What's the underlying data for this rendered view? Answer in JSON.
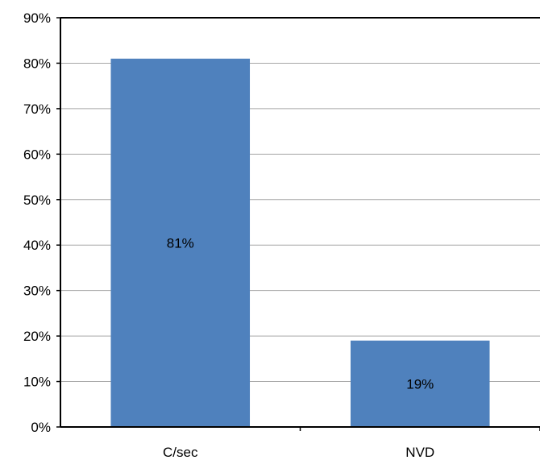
{
  "chart_data": {
    "type": "bar",
    "categories": [
      "C/sec",
      "NVD"
    ],
    "values": [
      81,
      19
    ],
    "data_labels": [
      "81%",
      "19%"
    ],
    "ylim": [
      0,
      90
    ],
    "ytick_step": 10,
    "ytick_suffix": "%",
    "title": "",
    "xlabel": "",
    "ylabel": "",
    "grid": true,
    "legend": "none",
    "colors": {
      "bar": "#4f81bd",
      "grid": "#a6a6a6",
      "axis": "#000000"
    }
  }
}
